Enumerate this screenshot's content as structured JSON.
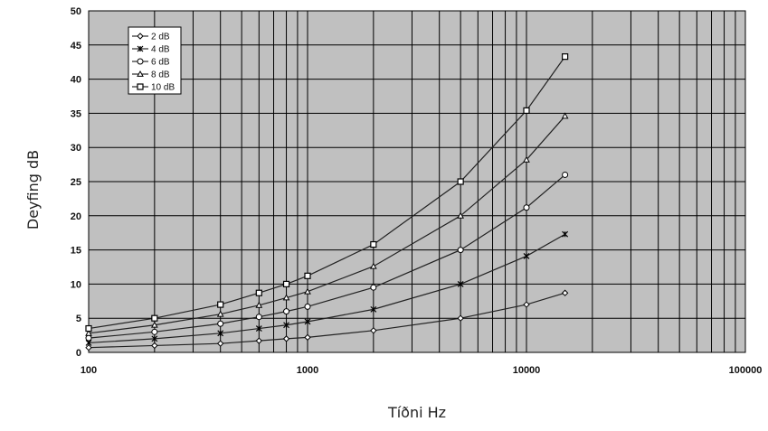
{
  "chart_data": {
    "type": "line",
    "title": "",
    "xlabel": "Tíðni Hz",
    "ylabel": "Deyfing dB",
    "xscale": "log",
    "xlim": [
      100,
      100000
    ],
    "ylim": [
      0,
      50
    ],
    "grid": true,
    "legend_position": "top-left",
    "plot_background": "#c0c0c0",
    "x_tick_labels": [
      "100",
      "1000",
      "10000",
      "100000"
    ],
    "y_tick_labels": [
      "0",
      "5",
      "10",
      "15",
      "20",
      "25",
      "30",
      "35",
      "40",
      "45",
      "50"
    ],
    "x": [
      100,
      200,
      400,
      600,
      800,
      1000,
      2000,
      5000,
      10000,
      15000
    ],
    "series": [
      {
        "name": "2 dB",
        "marker": "diamond",
        "values": [
          0.7,
          1.0,
          1.3,
          1.7,
          2.0,
          2.2,
          3.2,
          5.0,
          7.0,
          8.7
        ]
      },
      {
        "name": "4 dB",
        "marker": "star",
        "values": [
          1.4,
          2.0,
          2.8,
          3.5,
          4.0,
          4.5,
          6.3,
          10.0,
          14.1,
          17.3
        ]
      },
      {
        "name": "6 dB",
        "marker": "circle",
        "values": [
          2.1,
          3.0,
          4.2,
          5.2,
          6.0,
          6.7,
          9.5,
          15.0,
          21.2,
          26.0
        ]
      },
      {
        "name": "8 dB",
        "marker": "triangle",
        "values": [
          2.8,
          4.0,
          5.6,
          6.9,
          8.0,
          8.9,
          12.6,
          20.0,
          28.2,
          34.6
        ]
      },
      {
        "name": "10 dB",
        "marker": "square",
        "values": [
          3.5,
          5.0,
          7.0,
          8.7,
          10.0,
          11.2,
          15.8,
          25.0,
          35.4,
          43.3
        ]
      }
    ]
  }
}
